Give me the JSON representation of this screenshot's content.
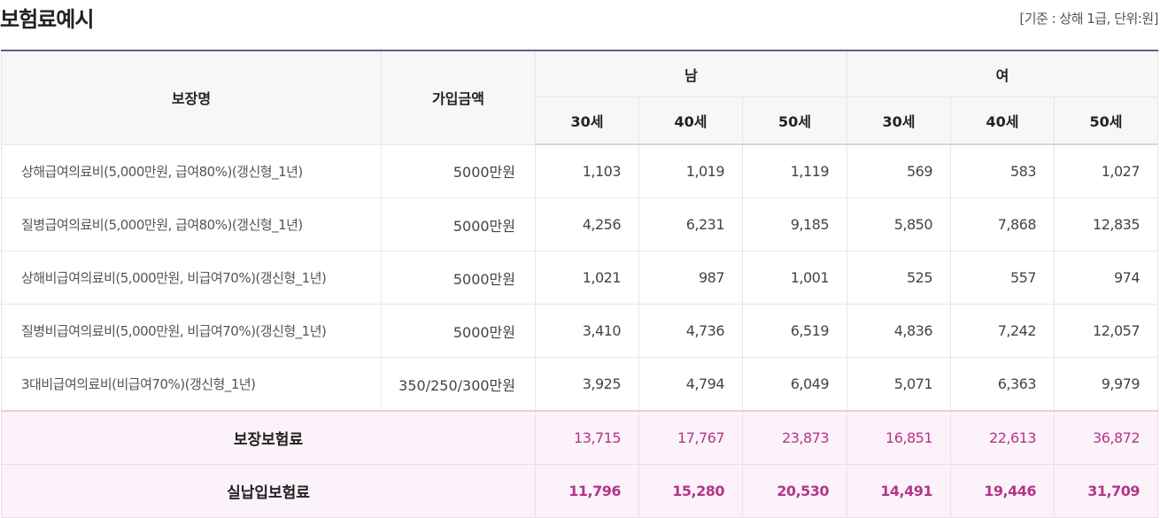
{
  "title": "보험료예시",
  "basis": "[기준 : 상해 1급, 단위:원]",
  "headers": {
    "coverage": "보장명",
    "amount": "가입금액",
    "male": "남",
    "female": "여",
    "ages": [
      "30세",
      "40세",
      "50세",
      "30세",
      "40세",
      "50세"
    ]
  },
  "rows": [
    {
      "name": "상해급여의료비(5,000만원, 급여80%)(갱신형_1년)",
      "amount": "5000만원",
      "values": [
        "1,103",
        "1,019",
        "1,119",
        "569",
        "583",
        "1,027"
      ]
    },
    {
      "name": "질병급여의료비(5,000만원, 급여80%)(갱신형_1년)",
      "amount": "5000만원",
      "values": [
        "4,256",
        "6,231",
        "9,185",
        "5,850",
        "7,868",
        "12,835"
      ]
    },
    {
      "name": "상해비급여의료비(5,000만원, 비급여70%)(갱신형_1년)",
      "amount": "5000만원",
      "values": [
        "1,021",
        "987",
        "1,001",
        "525",
        "557",
        "974"
      ]
    },
    {
      "name": "질병비급여의료비(5,000만원, 비급여70%)(갱신형_1년)",
      "amount": "5000만원",
      "values": [
        "3,410",
        "4,736",
        "6,519",
        "4,836",
        "7,242",
        "12,057"
      ]
    },
    {
      "name": "3대비급여의료비(비급여70%)(갱신형_1년)",
      "amount": "350/250/300만원",
      "values": [
        "3,925",
        "4,794",
        "6,049",
        "5,071",
        "6,363",
        "9,979"
      ]
    }
  ],
  "totals": [
    {
      "label": "보장보험료",
      "values": [
        "13,715",
        "17,767",
        "23,873",
        "16,851",
        "22,613",
        "36,872"
      ]
    },
    {
      "label": "실납입보험료",
      "values": [
        "11,796",
        "15,280",
        "20,530",
        "14,491",
        "19,446",
        "31,709"
      ]
    }
  ]
}
